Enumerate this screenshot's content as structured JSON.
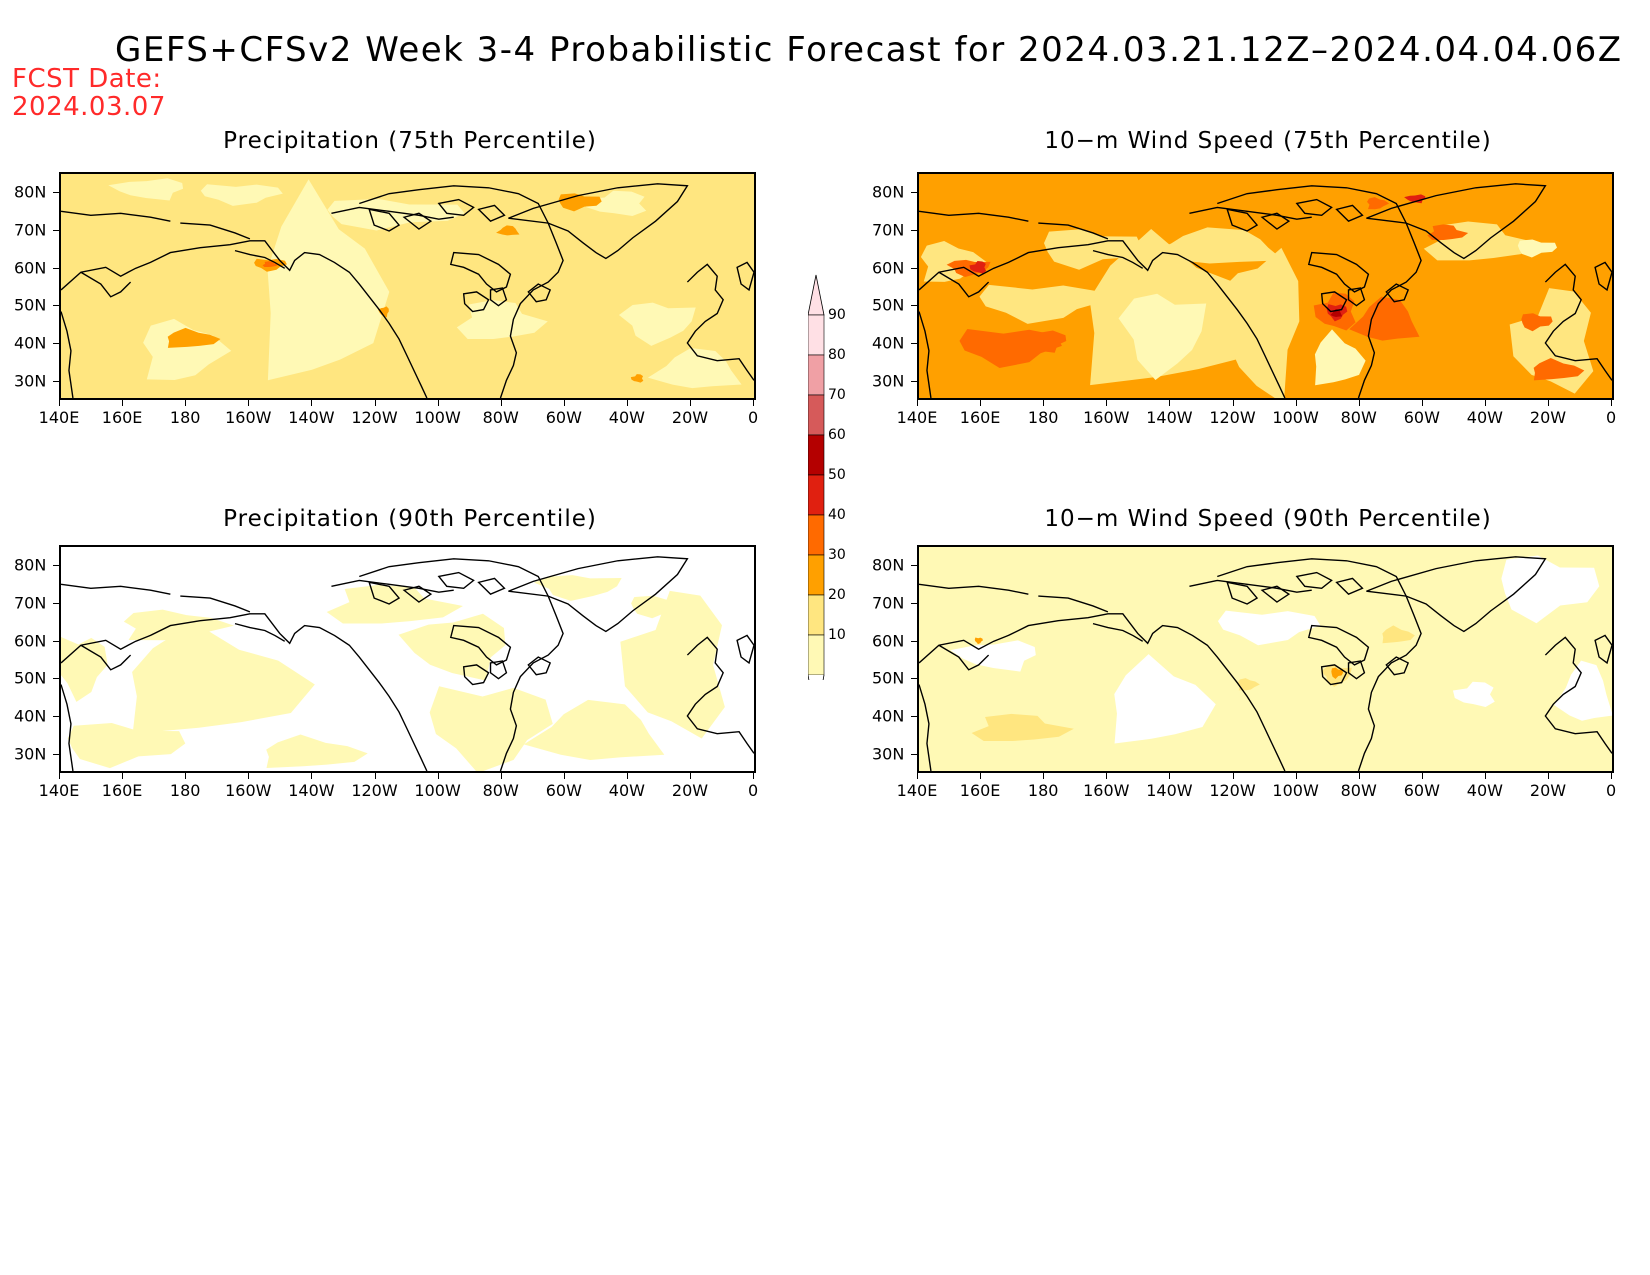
{
  "title": "GEFS+CFSv2 Week 3-4 Probabilistic Forecast for 2024.03.21.12Z–2024.04.04.06Z",
  "fcst_label": "FCST Date:",
  "fcst_date": "2024.03.07",
  "colors": {
    "c10": "#fff9b5",
    "c20": "#ffe680",
    "c30": "#ffa000",
    "c40": "#ff6a00",
    "c50": "#e02010",
    "c60": "#b40000",
    "c70": "#d65a5a",
    "c80": "#f0a0a5",
    "c90": "#ffe0e5"
  },
  "colorbar": {
    "levels": [
      "10",
      "20",
      "30",
      "40",
      "50",
      "60",
      "70",
      "80",
      "90"
    ]
  },
  "lat_labels": [
    "80N",
    "70N",
    "60N",
    "50N",
    "40N",
    "30N"
  ],
  "lon_labels": [
    "140E",
    "160E",
    "180",
    "160W",
    "140W",
    "120W",
    "100W",
    "80W",
    "60W",
    "40W",
    "20W",
    "0"
  ],
  "panels": [
    {
      "id": "precip75",
      "title": "Precipitation (75th Percentile)",
      "base_level": "20"
    },
    {
      "id": "wind75",
      "title": "10−m Wind Speed (75th Percentile)",
      "base_level": "30"
    },
    {
      "id": "precip90",
      "title": "Precipitation (90th Percentile)",
      "base_level": "0"
    },
    {
      "id": "wind90",
      "title": "10−m Wind Speed (90th Percentile)",
      "base_level": "10"
    }
  ]
}
